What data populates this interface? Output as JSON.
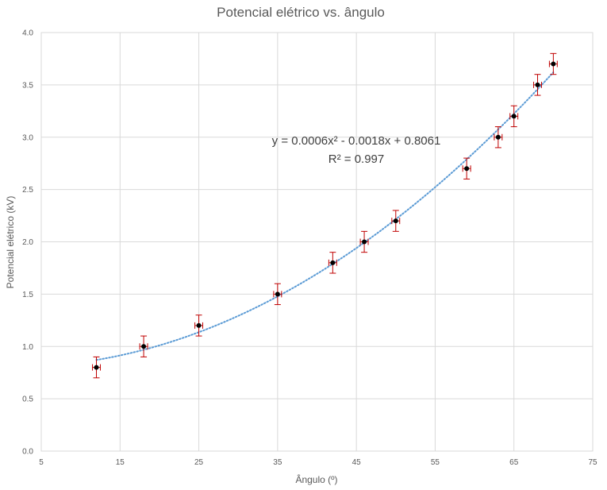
{
  "chart_data": {
    "type": "scatter",
    "title": "Potencial elétrico vs. ângulo",
    "xlabel": "Ângulo (º)",
    "ylabel": "Potencial elétrico (kV)",
    "xlim": [
      5,
      75
    ],
    "ylim": [
      0,
      4
    ],
    "xticks": [
      5,
      15,
      25,
      35,
      45,
      55,
      65,
      75
    ],
    "yticks": [
      0.0,
      0.5,
      1.0,
      1.5,
      2.0,
      2.5,
      3.0,
      3.5,
      4.0
    ],
    "xtick_labels": [
      "5",
      "15",
      "25",
      "35",
      "45",
      "55",
      "65",
      "75"
    ],
    "ytick_labels": [
      "0.0",
      "0.5",
      "1.0",
      "1.5",
      "2.0",
      "2.5",
      "3.0",
      "3.5",
      "4.0"
    ],
    "grid": true,
    "points": [
      {
        "x": 12,
        "y": 0.8
      },
      {
        "x": 18,
        "y": 1.0
      },
      {
        "x": 25,
        "y": 1.2
      },
      {
        "x": 35,
        "y": 1.5
      },
      {
        "x": 42,
        "y": 1.8
      },
      {
        "x": 46,
        "y": 2.0
      },
      {
        "x": 50,
        "y": 2.2
      },
      {
        "x": 59,
        "y": 2.7
      },
      {
        "x": 63,
        "y": 3.0
      },
      {
        "x": 65,
        "y": 3.2
      },
      {
        "x": 68,
        "y": 3.5
      },
      {
        "x": 70,
        "y": 3.7
      }
    ],
    "error_y": 0.1,
    "error_x": 0.5,
    "trendline": {
      "type": "polynomial",
      "order": 2,
      "coefficients": [
        0.0006,
        -0.0018,
        0.8061
      ],
      "equation_label": "y = 0.0006x² - 0.0018x + 0.8061",
      "r2_label": "R² = 0.997"
    },
    "colors": {
      "marker": "#000000",
      "error_y": "#c00000",
      "error_x": "#c00000",
      "trendline": "#5b9bd5"
    }
  }
}
